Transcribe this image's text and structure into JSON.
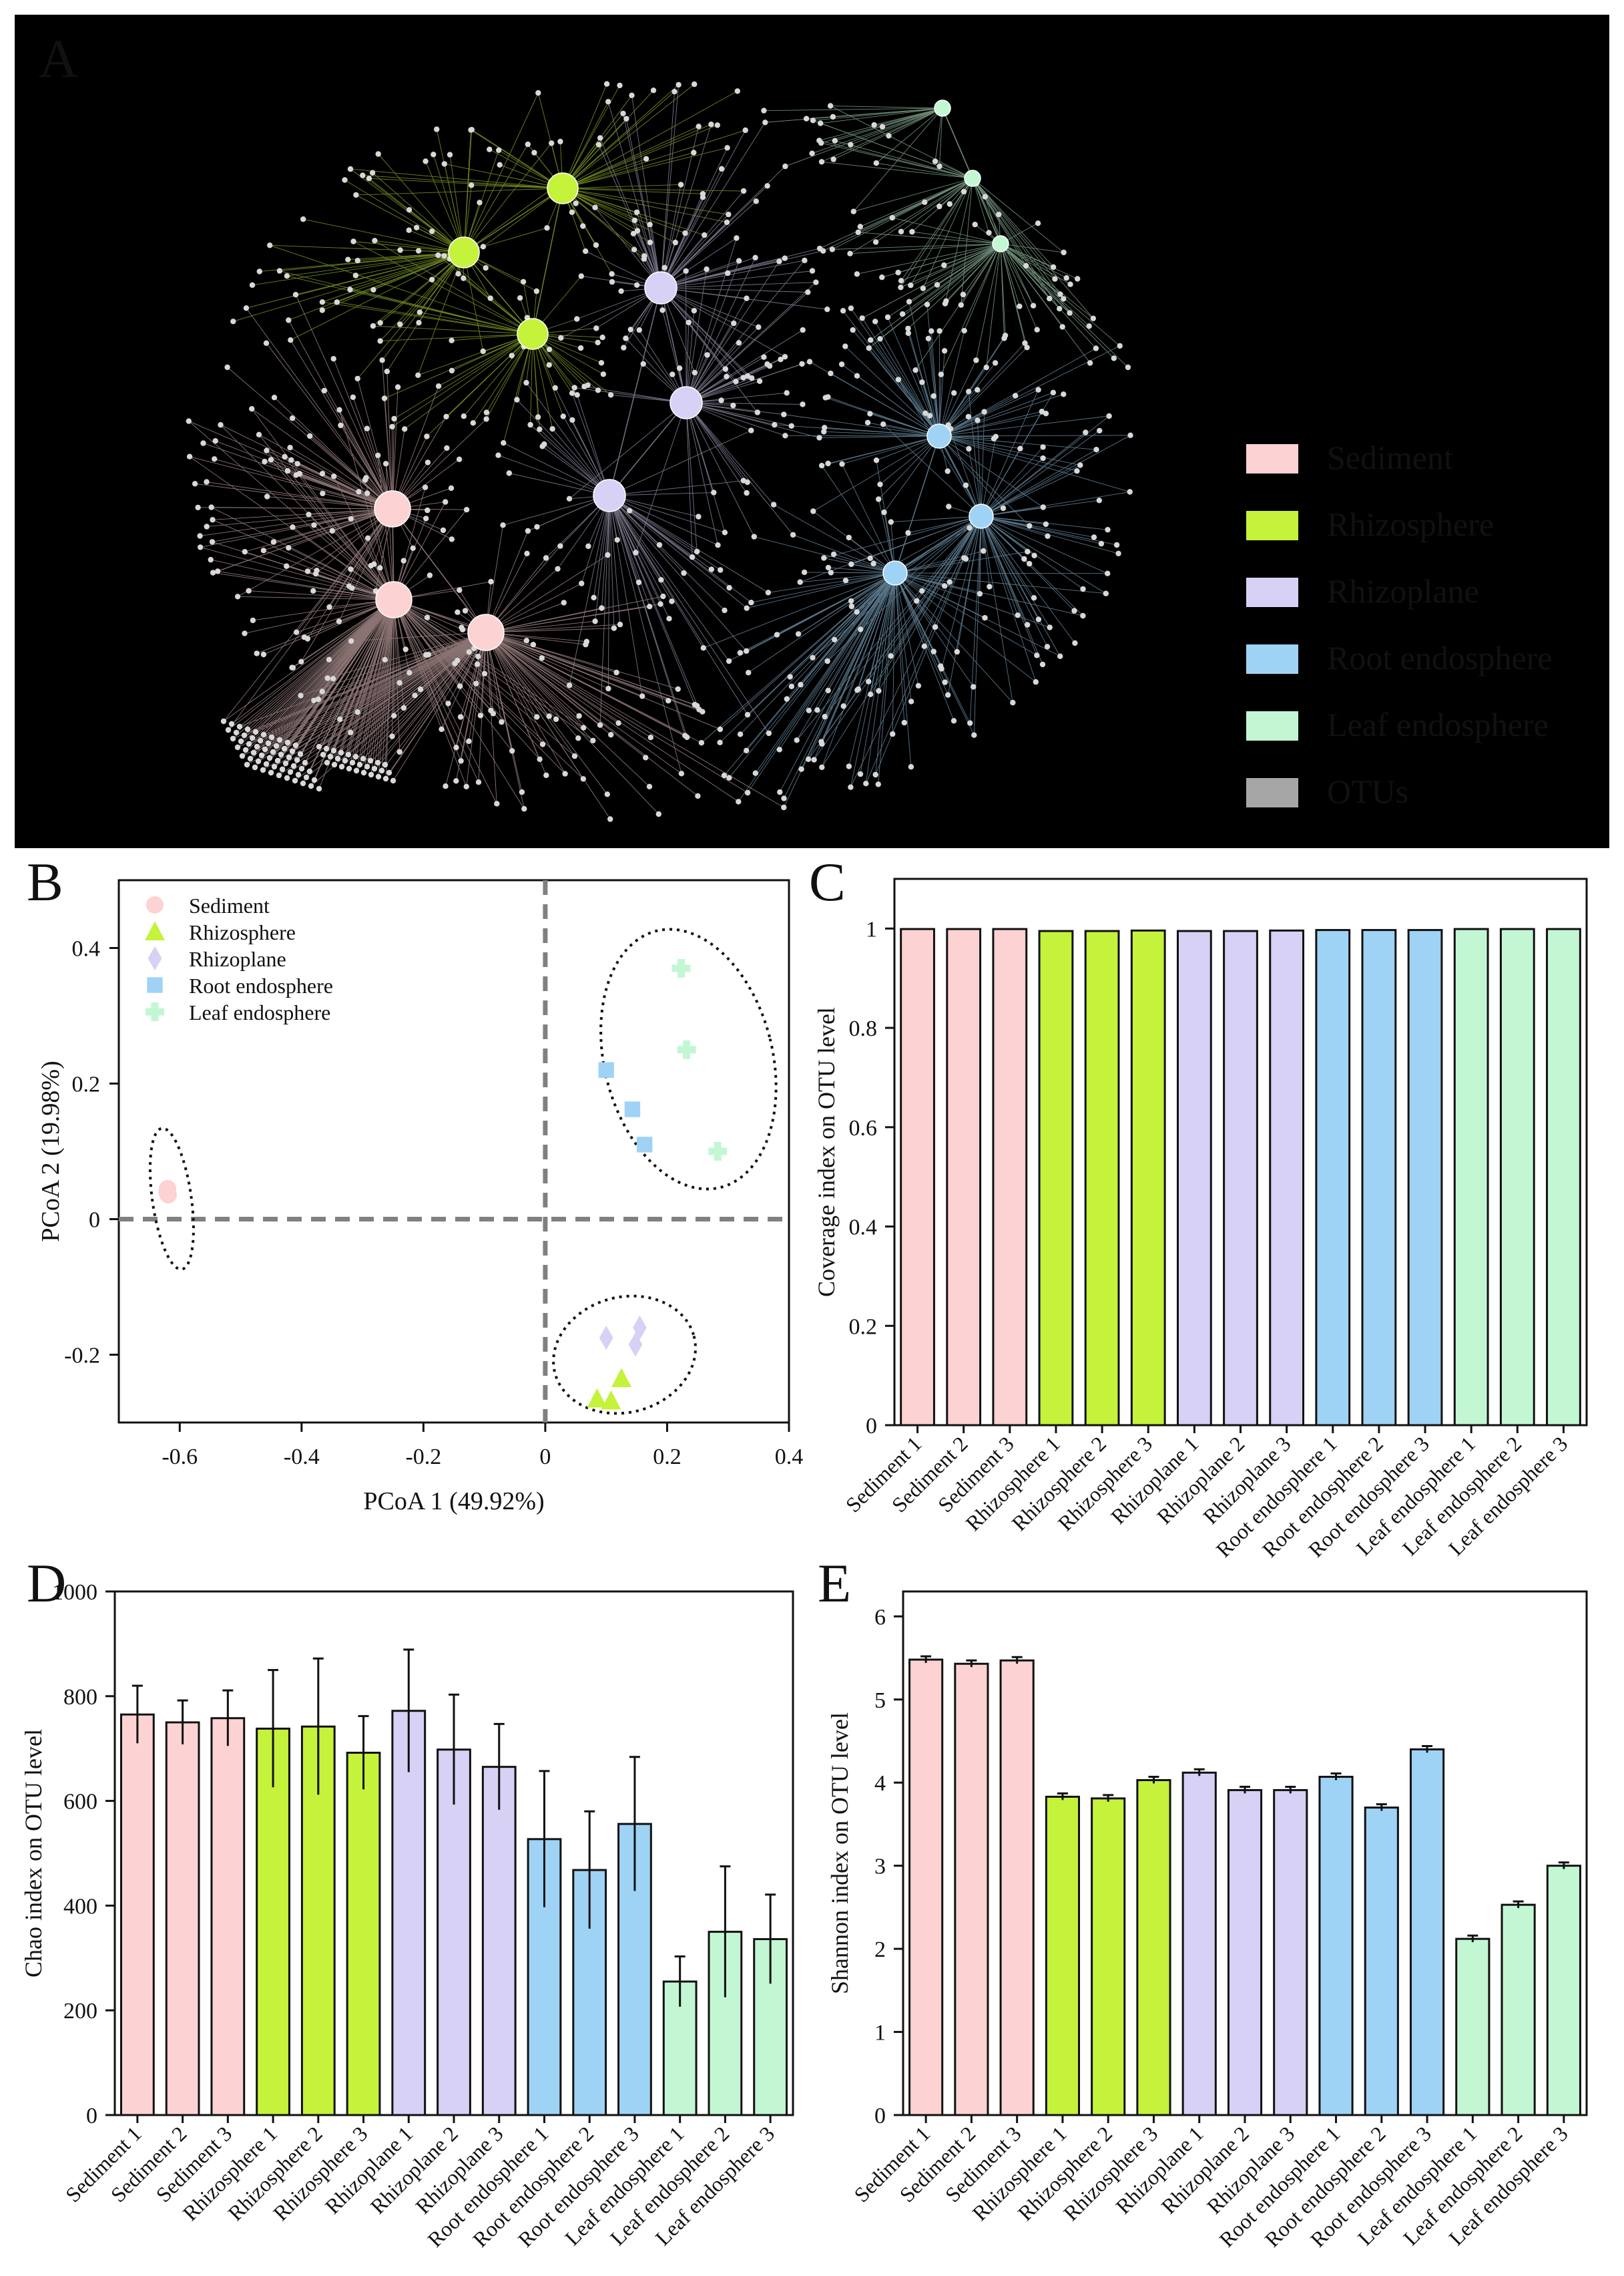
{
  "groups": [
    {
      "name": "Sediment",
      "color": "#fdd2d2"
    },
    {
      "name": "Rhizosphere",
      "color": "#c5f23b"
    },
    {
      "name": "Rhizoplane",
      "color": "#d6d1f5"
    },
    {
      "name": "Root endosphere",
      "color": "#9fd3f6"
    },
    {
      "name": "Leaf endosphere",
      "color": "#c3f7d3"
    }
  ],
  "otu_legend": {
    "name": "OTUs",
    "color": "#a6a6a6"
  },
  "chart_data": [
    {
      "panel": "A",
      "type": "network",
      "title": "",
      "legend": [
        "Sediment",
        "Rhizosphere",
        "Rhizoplane",
        "Root endosphere",
        "Leaf endosphere",
        "OTUs"
      ]
    },
    {
      "panel": "B",
      "type": "scatter",
      "title": "",
      "xlabel": "PCoA 1 (49.92%)",
      "ylabel": "PCoA 2 (19.98%)",
      "xlim": [
        -0.7,
        0.4
      ],
      "ylim": [
        -0.3,
        0.5
      ],
      "xticks": [
        -0.6,
        -0.4,
        -0.2,
        0,
        0.2,
        0.4
      ],
      "xtick_labels": [
        "-0.6",
        "-0.4",
        "-0.2",
        "0",
        "0.2",
        "0.4"
      ],
      "yticks": [
        -0.2,
        0,
        0.2,
        0.4
      ],
      "ytick_labels": [
        "-0.2",
        "0",
        "0.2",
        "0.4"
      ],
      "series": [
        {
          "name": "Sediment",
          "marker": "circle",
          "points": [
            [
              -0.62,
              0.045
            ],
            [
              -0.621,
              0.04
            ],
            [
              -0.619,
              0.036
            ]
          ]
        },
        {
          "name": "Rhizosphere",
          "marker": "triangle",
          "points": [
            [
              0.085,
              -0.265
            ],
            [
              0.108,
              -0.268
            ],
            [
              0.125,
              -0.235
            ]
          ]
        },
        {
          "name": "Rhizoplane",
          "marker": "diamond",
          "points": [
            [
              0.1,
              -0.175
            ],
            [
              0.148,
              -0.185
            ],
            [
              0.155,
              -0.16
            ]
          ]
        },
        {
          "name": "Root endosphere",
          "marker": "square",
          "points": [
            [
              0.1,
              0.22
            ],
            [
              0.143,
              0.162
            ],
            [
              0.163,
              0.11
            ]
          ]
        },
        {
          "name": "Leaf endosphere",
          "marker": "cross",
          "points": [
            [
              0.223,
              0.37
            ],
            [
              0.232,
              0.25
            ],
            [
              0.283,
              0.1
            ]
          ]
        }
      ]
    },
    {
      "panel": "C",
      "type": "bar",
      "title": "",
      "xlabel": "",
      "ylabel": "Coverage index on OTU level",
      "ylim": [
        0,
        1.1
      ],
      "yticks": [
        0,
        0.2,
        0.4,
        0.6,
        0.8,
        1
      ],
      "ytick_labels": [
        "0",
        "0.2",
        "0.4",
        "0.6",
        "0.8",
        "1"
      ],
      "categories": [
        "Sediment 1",
        "Sediment 2",
        "Sediment 3",
        "Rhizosphere 1",
        "Rhizosphere 2",
        "Rhizosphere 3",
        "Rhizoplane 1",
        "Rhizoplane 2",
        "Rhizoplane 3",
        "Root endosphere 1",
        "Root endosphere 2",
        "Root endosphere 3",
        "Leaf endosphere 1",
        "Leaf endosphere 2",
        "Leaf endosphere 3"
      ],
      "values": [
        0.999,
        0.999,
        0.999,
        0.995,
        0.995,
        0.996,
        0.995,
        0.995,
        0.996,
        0.997,
        0.997,
        0.997,
        0.999,
        0.999,
        0.999
      ]
    },
    {
      "panel": "D",
      "type": "bar",
      "title": "",
      "xlabel": "",
      "ylabel": "Chao index on OTU level",
      "ylim": [
        0,
        1000
      ],
      "yticks": [
        0,
        200,
        400,
        600,
        800,
        1000
      ],
      "ytick_labels": [
        "0",
        "200",
        "400",
        "600",
        "800",
        "1000"
      ],
      "categories": [
        "Sediment 1",
        "Sediment 2",
        "Sediment 3",
        "Rhizosphere 1",
        "Rhizosphere 2",
        "Rhizosphere 3",
        "Rhizoplane 1",
        "Rhizoplane 2",
        "Rhizoplane 3",
        "Root endosphere 1",
        "Root endosphere 2",
        "Root endosphere 3",
        "Leaf endosphere 1",
        "Leaf endosphere 2",
        "Leaf endosphere 3"
      ],
      "values": [
        765,
        750,
        758,
        738,
        742,
        692,
        772,
        698,
        665,
        527,
        468,
        556,
        255,
        350,
        336
      ],
      "errors": [
        55,
        42,
        53,
        112,
        130,
        70,
        117,
        105,
        82,
        130,
        112,
        128,
        48,
        125,
        85
      ]
    },
    {
      "panel": "E",
      "type": "bar",
      "title": "",
      "xlabel": "",
      "ylabel": "Shannon index on OTU level",
      "ylim": [
        0,
        6.3
      ],
      "yticks": [
        0,
        1,
        2,
        3,
        4,
        5,
        6
      ],
      "ytick_labels": [
        "0",
        "1",
        "2",
        "3",
        "4",
        "5",
        "6"
      ],
      "categories": [
        "Sediment 1",
        "Sediment 2",
        "Sediment 3",
        "Rhizosphere 1",
        "Rhizosphere 2",
        "Rhizosphere 3",
        "Rhizoplane 1",
        "Rhizoplane 2",
        "Rhizoplane 3",
        "Root endosphere 1",
        "Root endosphere 2",
        "Root endosphere 3",
        "Leaf endosphere 1",
        "Leaf endosphere 2",
        "Leaf endosphere 3"
      ],
      "values": [
        5.48,
        5.43,
        5.47,
        3.83,
        3.81,
        4.03,
        4.12,
        3.91,
        3.91,
        4.07,
        3.7,
        4.4,
        2.12,
        2.53,
        3.0
      ],
      "errors": [
        0.04,
        0.04,
        0.04,
        0.04,
        0.04,
        0.04,
        0.04,
        0.04,
        0.04,
        0.04,
        0.04,
        0.04,
        0.04,
        0.04,
        0.04
      ]
    }
  ]
}
